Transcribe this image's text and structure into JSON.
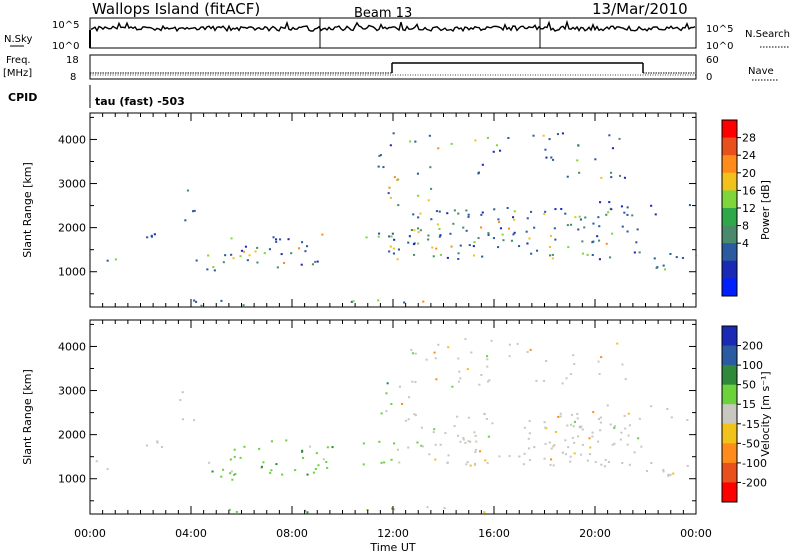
{
  "header": {
    "station": "Wallops Island (fitACF)",
    "beam": "Beam 13",
    "date": "13/Mar/2010"
  },
  "noise_panel": {
    "left_label": "N.Sky",
    "left_ticks": [
      "10^5",
      "10^0"
    ],
    "right_label": "N.Search",
    "right_ticks": [
      "10^5",
      "10^0"
    ]
  },
  "freq_panel": {
    "left_label_1": "Freq.",
    "left_label_2": "[MHz]",
    "left_ticks": [
      "18",
      "8"
    ],
    "right_label": "Nave",
    "right_ticks": [
      "60",
      "0"
    ]
  },
  "cpid": {
    "label": "CPID",
    "value": "tau (fast) -503"
  },
  "chart_data": [
    {
      "type": "heatmap",
      "name": "power",
      "ylabel": "Slant Range [km]",
      "ylim": [
        200,
        4600
      ],
      "xlim_hours": [
        0,
        24
      ],
      "y_ticks": [
        1000,
        2000,
        3000,
        4000
      ],
      "colorbar": {
        "label": "Power [dB]",
        "ticks": [
          "28",
          "24",
          "20",
          "16",
          "12",
          "8",
          "4"
        ],
        "colors": [
          "#ff0000",
          "#e8501c",
          "#ff8c1a",
          "#f2c21c",
          "#7ed63a",
          "#2fa84a",
          "#4a8a6a",
          "#2a5aa0",
          "#1a2ab4",
          "#0020ff"
        ]
      }
    },
    {
      "type": "heatmap",
      "name": "velocity",
      "ylabel": "Slant Range [km]",
      "ylim": [
        200,
        4600
      ],
      "xlim_hours": [
        0,
        24
      ],
      "y_ticks": [
        1000,
        2000,
        3000,
        4000
      ],
      "xlabel": "Time UT",
      "x_ticks": [
        "00:00",
        "04:00",
        "08:00",
        "12:00",
        "16:00",
        "20:00",
        "00:00"
      ],
      "colorbar": {
        "label": "Velocity [m s⁻¹]",
        "ticks": [
          "200",
          "100",
          "50",
          "15",
          "-15",
          "-50",
          "-100",
          "-200"
        ],
        "colors": [
          "#1a2ab4",
          "#2a5aa0",
          "#2e8a3a",
          "#6cd23c",
          "#c8c8c0",
          "#f2c21c",
          "#ff8c1a",
          "#e8501c",
          "#ff0000"
        ]
      }
    }
  ]
}
